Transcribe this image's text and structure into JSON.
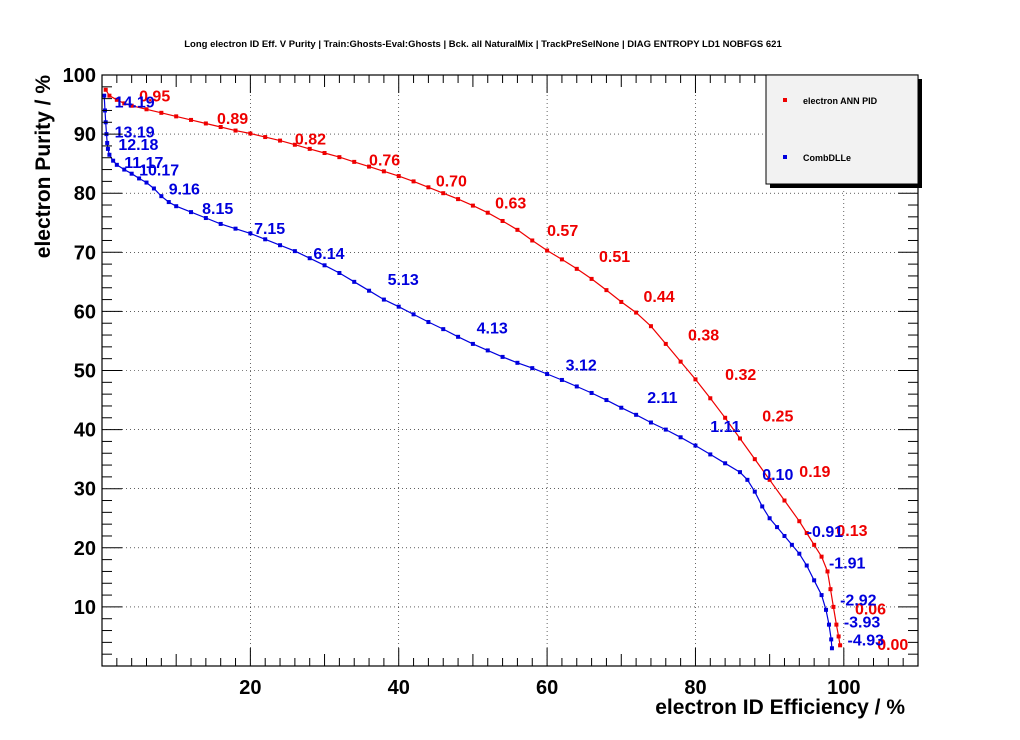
{
  "colors": {
    "ann": "#ee0000",
    "dll": "#0000dd",
    "axis": "#000000",
    "grid": "#000000"
  },
  "chart_data": {
    "type": "line",
    "title": "Long electron ID Eff. V Purity | Train:Ghosts-Eval:Ghosts | Bck. all NaturalMix | TrackPreSelNone | DIAG ENTROPY LD1 NOBFGS 621",
    "xlabel": "electron ID Efficiency / %",
    "ylabel": "electron Purity / %",
    "xlim": [
      0,
      110
    ],
    "ylim": [
      0,
      100
    ],
    "xticks": [
      20,
      40,
      60,
      80,
      100
    ],
    "yticks": [
      10,
      20,
      30,
      40,
      50,
      60,
      70,
      80,
      90,
      100
    ],
    "grid": true,
    "legend_position": "top-right",
    "legend": [
      "electron ANN PID",
      "CombDLLe"
    ],
    "series": [
      {
        "name": "electron ANN PID",
        "points": [
          [
            0.5,
            97.5
          ],
          [
            1,
            96.5
          ],
          [
            2,
            95.8
          ],
          [
            3,
            95.2
          ],
          [
            4,
            94.8
          ],
          [
            6,
            94.2
          ],
          [
            8,
            93.6
          ],
          [
            10,
            93.0
          ],
          [
            12,
            92.4
          ],
          [
            14,
            91.8
          ],
          [
            16,
            91.2
          ],
          [
            18,
            90.6
          ],
          [
            20,
            90.1
          ],
          [
            22,
            89.5
          ],
          [
            24,
            88.9
          ],
          [
            26,
            88.2
          ],
          [
            28,
            87.5
          ],
          [
            30,
            86.8
          ],
          [
            32,
            86.1
          ],
          [
            34,
            85.3
          ],
          [
            36,
            84.5
          ],
          [
            38,
            83.7
          ],
          [
            40,
            82.9
          ],
          [
            42,
            82.0
          ],
          [
            44,
            81.0
          ],
          [
            46,
            80.0
          ],
          [
            48,
            79.0
          ],
          [
            50,
            77.9
          ],
          [
            52,
            76.7
          ],
          [
            54,
            75.3
          ],
          [
            56,
            73.8
          ],
          [
            58,
            72.0
          ],
          [
            60,
            70.3
          ],
          [
            62,
            68.8
          ],
          [
            64,
            67.2
          ],
          [
            66,
            65.5
          ],
          [
            68,
            63.6
          ],
          [
            70,
            61.6
          ],
          [
            72,
            59.8
          ],
          [
            74,
            57.5
          ],
          [
            76,
            54.5
          ],
          [
            78,
            51.5
          ],
          [
            80,
            48.5
          ],
          [
            82,
            45.3
          ],
          [
            84,
            42.0
          ],
          [
            86,
            38.5
          ],
          [
            88,
            35.0
          ],
          [
            90,
            31.5
          ],
          [
            92,
            28.0
          ],
          [
            94,
            24.5
          ],
          [
            95,
            22.5
          ],
          [
            96,
            20.5
          ],
          [
            97,
            18.5
          ],
          [
            97.8,
            16.0
          ],
          [
            98.2,
            13.0
          ],
          [
            98.6,
            10.0
          ],
          [
            99,
            7.0
          ],
          [
            99.3,
            5.0
          ],
          [
            99.5,
            3.5
          ]
        ],
        "labels": [
          {
            "text": "0.95",
            "x": 5,
            "y": 95.5
          },
          {
            "text": "0.89",
            "x": 15.5,
            "y": 91.7
          },
          {
            "text": "0.82",
            "x": 26,
            "y": 88.2
          },
          {
            "text": "0.76",
            "x": 36,
            "y": 84.7
          },
          {
            "text": "0.70",
            "x": 45,
            "y": 81.1
          },
          {
            "text": "0.63",
            "x": 53,
            "y": 77.4
          },
          {
            "text": "0.57",
            "x": 60,
            "y": 72.8
          },
          {
            "text": "0.51",
            "x": 67,
            "y": 68.4
          },
          {
            "text": "0.44",
            "x": 73,
            "y": 61.6
          },
          {
            "text": "0.38",
            "x": 79,
            "y": 55.1
          },
          {
            "text": "0.32",
            "x": 84,
            "y": 48.4
          },
          {
            "text": "0.25",
            "x": 89,
            "y": 41.4
          },
          {
            "text": "0.19",
            "x": 94,
            "y": 32.0
          },
          {
            "text": "0.13",
            "x": 99,
            "y": 22.0
          },
          {
            "text": "0.06",
            "x": 101.5,
            "y": 8.7
          },
          {
            "text": "0.00",
            "x": 104.5,
            "y": 2.7
          }
        ]
      },
      {
        "name": "CombDLLe",
        "points": [
          [
            0.3,
            96.5
          ],
          [
            0.4,
            94
          ],
          [
            0.5,
            92
          ],
          [
            0.6,
            90
          ],
          [
            0.7,
            88.5
          ],
          [
            0.8,
            87.5
          ],
          [
            1,
            86.5
          ],
          [
            1.5,
            85.5
          ],
          [
            2,
            84.8
          ],
          [
            3,
            84.0
          ],
          [
            4,
            83.3
          ],
          [
            5,
            82.5
          ],
          [
            6,
            81.8
          ],
          [
            7,
            80.8
          ],
          [
            8,
            79.5
          ],
          [
            9,
            78.5
          ],
          [
            10,
            77.8
          ],
          [
            12,
            76.8
          ],
          [
            14,
            75.8
          ],
          [
            16,
            74.8
          ],
          [
            18,
            74.0
          ],
          [
            20,
            73.2
          ],
          [
            22,
            72.2
          ],
          [
            24,
            71.2
          ],
          [
            26,
            70.2
          ],
          [
            28,
            69.0
          ],
          [
            30,
            67.8
          ],
          [
            32,
            66.5
          ],
          [
            34,
            65.0
          ],
          [
            36,
            63.5
          ],
          [
            38,
            62.0
          ],
          [
            40,
            60.8
          ],
          [
            42,
            59.5
          ],
          [
            44,
            58.2
          ],
          [
            46,
            57.0
          ],
          [
            48,
            55.7
          ],
          [
            50,
            54.5
          ],
          [
            52,
            53.4
          ],
          [
            54,
            52.3
          ],
          [
            56,
            51.3
          ],
          [
            58,
            50.4
          ],
          [
            60,
            49.4
          ],
          [
            62,
            48.4
          ],
          [
            64,
            47.3
          ],
          [
            66,
            46.2
          ],
          [
            68,
            45.0
          ],
          [
            70,
            43.7
          ],
          [
            72,
            42.5
          ],
          [
            74,
            41.2
          ],
          [
            76,
            40.0
          ],
          [
            78,
            38.7
          ],
          [
            80,
            37.3
          ],
          [
            82,
            35.8
          ],
          [
            84,
            34.3
          ],
          [
            86,
            32.8
          ],
          [
            87,
            31.5
          ],
          [
            88,
            29.5
          ],
          [
            89,
            27.0
          ],
          [
            90,
            25.0
          ],
          [
            91,
            23.5
          ],
          [
            92,
            22.0
          ],
          [
            93,
            20.5
          ],
          [
            94,
            19.0
          ],
          [
            95,
            17.0
          ],
          [
            96,
            14.5
          ],
          [
            97,
            12.0
          ],
          [
            97.6,
            9.5
          ],
          [
            98,
            7.0
          ],
          [
            98.3,
            4.5
          ],
          [
            98.4,
            3.0
          ]
        ],
        "labels": [
          {
            "text": "14.19",
            "x": 1.7,
            "y": 94.5
          },
          {
            "text": "13.19",
            "x": 1.7,
            "y": 89.4
          },
          {
            "text": "12.18",
            "x": 2.2,
            "y": 87.3
          },
          {
            "text": "11.17",
            "x": 3,
            "y": 84.3
          },
          {
            "text": "10.17",
            "x": 5,
            "y": 83.0
          },
          {
            "text": "9.16",
            "x": 9,
            "y": 79.8
          },
          {
            "text": "8.15",
            "x": 13.5,
            "y": 76.5
          },
          {
            "text": "7.15",
            "x": 20.5,
            "y": 73.1
          },
          {
            "text": "6.14",
            "x": 28.5,
            "y": 68.9
          },
          {
            "text": "5.13",
            "x": 38.5,
            "y": 64.5
          },
          {
            "text": "4.13",
            "x": 50.5,
            "y": 56.3
          },
          {
            "text": "3.12",
            "x": 62.5,
            "y": 50.0
          },
          {
            "text": "2.11",
            "x": 73.5,
            "y": 44.5
          },
          {
            "text": "1.11",
            "x": 82,
            "y": 39.6
          },
          {
            "text": "0.10",
            "x": 89,
            "y": 31.5
          },
          {
            "text": "-0.91",
            "x": 95,
            "y": 21.8
          },
          {
            "text": "-1.91",
            "x": 98,
            "y": 16.5
          },
          {
            "text": "-2.92",
            "x": 99.5,
            "y": 10.2
          },
          {
            "text": "-3.93",
            "x": 100,
            "y": 6.5
          },
          {
            "text": "-4.93",
            "x": 100.5,
            "y": 3.5
          }
        ]
      }
    ]
  }
}
